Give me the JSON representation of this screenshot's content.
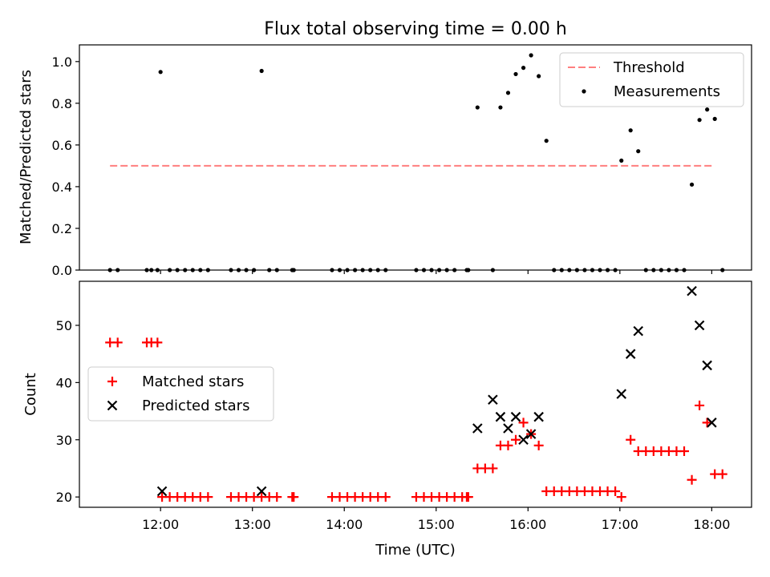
{
  "chart_data": [
    {
      "type": "scatter",
      "title": "Flux total observing time = 0.00 h",
      "xlabel": "",
      "ylabel": "Matched/Predicted stars",
      "xlim": [
        "11:07",
        "18:26"
      ],
      "ylim": [
        0,
        1.08
      ],
      "xticks": [
        "12:00",
        "13:00",
        "14:00",
        "15:00",
        "16:00",
        "17:00",
        "18:00"
      ],
      "yticks": [
        "0.0",
        "0.2",
        "0.4",
        "0.6",
        "0.8",
        "1.0"
      ],
      "legend": {
        "position": "top-right",
        "entries": [
          "Threshold",
          "Measurements"
        ]
      },
      "threshold": {
        "name": "Threshold",
        "value": 0.5,
        "x": [
          "11:27",
          "18:02"
        ],
        "color": "#ff7f7f"
      },
      "series": [
        {
          "name": "Measurements",
          "color": "#000000",
          "x": [
            "11:27",
            "11:32",
            "11:51",
            "11:54",
            "11:58",
            "12:00",
            "12:06",
            "12:11",
            "12:16",
            "12:21",
            "12:26",
            "12:31",
            "12:46",
            "12:51",
            "12:56",
            "13:01",
            "13:11",
            "13:16",
            "13:26",
            "13:27",
            "13:52",
            "13:57",
            "14:02",
            "14:07",
            "14:12",
            "14:17",
            "14:22",
            "14:27",
            "14:47",
            "14:52",
            "14:57",
            "15:02",
            "15:07",
            "15:12",
            "15:20",
            "15:21",
            "15:27",
            "15:37",
            "15:42",
            "15:47",
            "15:52",
            "15:57",
            "16:02",
            "16:07",
            "16:12",
            "16:17",
            "16:22",
            "16:27",
            "16:32",
            "16:37",
            "16:42",
            "16:47",
            "16:52",
            "16:57",
            "17:01",
            "17:07",
            "17:12",
            "17:17",
            "17:22",
            "17:27",
            "17:32",
            "17:37",
            "17:42",
            "17:47",
            "17:52",
            "17:57",
            "18:02",
            "18:07",
            "13:06"
          ],
          "y": [
            0,
            0,
            0,
            0,
            0,
            0.95,
            0,
            0,
            0,
            0,
            0,
            0,
            0,
            0,
            0,
            0,
            0,
            0,
            0,
            0,
            0,
            0,
            0,
            0,
            0,
            0,
            0,
            0,
            0,
            0,
            0,
            0,
            0,
            0,
            0,
            0,
            0.78,
            0,
            0.78,
            0.85,
            0.94,
            0.97,
            1.03,
            0.93,
            0.62,
            0,
            0,
            0,
            0,
            0,
            0,
            0,
            0,
            0,
            0.525,
            0.67,
            0.57,
            0,
            0,
            0,
            0,
            0,
            0,
            0.41,
            0.72,
            0.77,
            0.725,
            0,
            0.955
          ]
        }
      ]
    },
    {
      "type": "scatter",
      "title": "",
      "xlabel": "Time (UTC)",
      "ylabel": "Count",
      "xlim": [
        "11:07",
        "18:26"
      ],
      "ylim": [
        18.2,
        57.7
      ],
      "xticks": [
        "12:00",
        "13:00",
        "14:00",
        "15:00",
        "16:00",
        "17:00",
        "18:00"
      ],
      "yticks": [
        "20",
        "30",
        "40",
        "50"
      ],
      "legend": {
        "position": "center-left",
        "entries": [
          "Matched stars",
          "Predicted stars"
        ]
      },
      "series": [
        {
          "name": "Matched stars",
          "color": "#ff0000",
          "marker": "+",
          "x": [
            "11:27",
            "11:32",
            "11:51",
            "11:54",
            "11:58",
            "12:01",
            "12:06",
            "12:11",
            "12:16",
            "12:21",
            "12:26",
            "12:31",
            "12:46",
            "12:51",
            "12:56",
            "13:01",
            "13:06",
            "13:11",
            "13:16",
            "13:26",
            "13:27",
            "13:52",
            "13:57",
            "14:02",
            "14:07",
            "14:12",
            "14:17",
            "14:22",
            "14:27",
            "14:47",
            "14:52",
            "14:57",
            "15:02",
            "15:07",
            "15:12",
            "15:17",
            "15:20",
            "15:21",
            "15:27",
            "15:32",
            "15:37",
            "15:42",
            "15:47",
            "15:52",
            "15:57",
            "16:02",
            "16:07",
            "16:12",
            "16:17",
            "16:22",
            "16:27",
            "16:32",
            "16:37",
            "16:42",
            "16:47",
            "16:52",
            "16:57",
            "17:01",
            "17:07",
            "17:12",
            "17:17",
            "17:22",
            "17:27",
            "17:32",
            "17:37",
            "17:42",
            "17:47",
            "17:52",
            "17:57",
            "18:02",
            "18:07"
          ],
          "y": [
            47,
            47,
            47,
            47,
            47,
            20,
            20,
            20,
            20,
            20,
            20,
            20,
            20,
            20,
            20,
            20,
            20,
            20,
            20,
            20,
            20,
            20,
            20,
            20,
            20,
            20,
            20,
            20,
            20,
            20,
            20,
            20,
            20,
            20,
            20,
            20,
            20,
            20,
            25,
            25,
            25,
            29,
            29,
            30,
            33,
            31,
            29,
            21,
            21,
            21,
            21,
            21,
            21,
            21,
            21,
            21,
            21,
            20,
            30,
            28,
            28,
            28,
            28,
            28,
            28,
            28,
            23,
            36,
            33,
            24,
            24
          ]
        },
        {
          "name": "Predicted stars",
          "color": "#000000",
          "marker": "x",
          "x": [
            "12:01",
            "13:06",
            "15:27",
            "15:37",
            "15:42",
            "15:47",
            "15:52",
            "15:57",
            "16:02",
            "16:07",
            "17:01",
            "17:07",
            "17:12",
            "17:47",
            "17:52",
            "17:57",
            "18:00"
          ],
          "y": [
            21,
            21,
            32,
            37,
            34,
            32,
            34,
            30,
            31,
            34,
            38,
            45,
            49,
            56,
            50,
            43,
            33
          ]
        }
      ]
    }
  ]
}
